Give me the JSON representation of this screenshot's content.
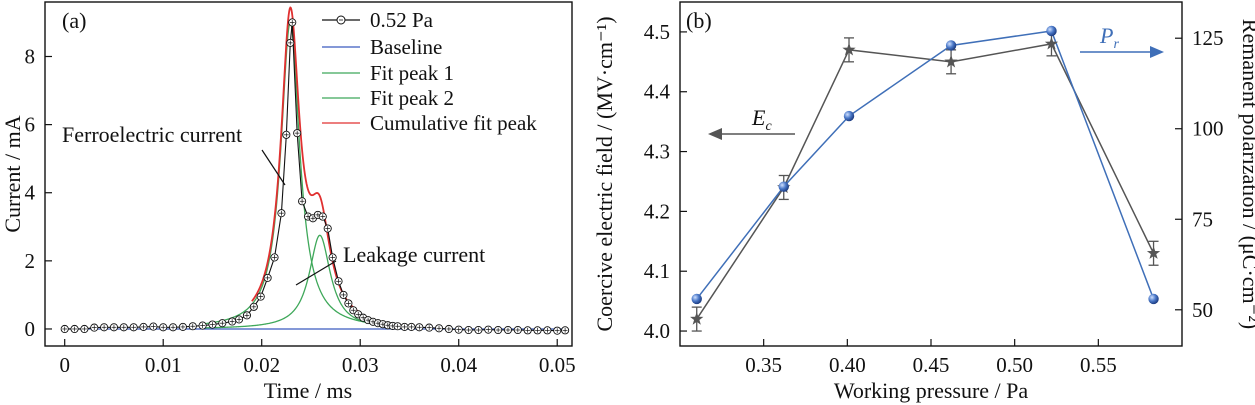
{
  "colors": {
    "data_marker": "#111111",
    "baseline": "#3a5bbf",
    "fit_peak": "#3fa85a",
    "cumulative": "#e03030",
    "ec_series": "#555555",
    "pr_series": "#3f6fb8",
    "pr_marker": "#4a78c8"
  },
  "chart_data": [
    {
      "type": "line",
      "panel_label": "(a)",
      "xlabel": "Time / ms",
      "ylabel": "Current / mA",
      "xlim": [
        -0.002,
        0.0515
      ],
      "ylim": [
        -0.5,
        9.6
      ],
      "x_ticks": [
        "0",
        "0.01",
        "0.02",
        "0.03",
        "0.04",
        "0.05"
      ],
      "y_ticks": [
        "0",
        "2",
        "4",
        "6",
        "8"
      ],
      "legend": [
        "0.52 Pa",
        "Baseline",
        "Fit peak 1",
        "Fit peak 2",
        "Cumulative fit peak"
      ],
      "legend_position": "top-right",
      "annotations": [
        "Ferroelectric current",
        "Leakage current"
      ],
      "peak1": {
        "center": 0.0229,
        "amplitude": 9.0,
        "half_width": 0.00115
      },
      "peak2": {
        "center": 0.0259,
        "amplitude": 2.75,
        "half_width": 0.0013
      },
      "series_points": [
        [
          0.0,
          0.0
        ],
        [
          0.001,
          0.0
        ],
        [
          0.002,
          0.0
        ],
        [
          0.003,
          0.04
        ],
        [
          0.004,
          0.05
        ],
        [
          0.005,
          0.05
        ],
        [
          0.006,
          0.05
        ],
        [
          0.007,
          0.05
        ],
        [
          0.008,
          0.06
        ],
        [
          0.009,
          0.07
        ],
        [
          0.01,
          0.05
        ],
        [
          0.011,
          0.05
        ],
        [
          0.012,
          0.06
        ],
        [
          0.013,
          0.08
        ],
        [
          0.014,
          0.1
        ],
        [
          0.015,
          0.13
        ],
        [
          0.016,
          0.17
        ],
        [
          0.017,
          0.22
        ],
        [
          0.0177,
          0.28
        ],
        [
          0.0185,
          0.4
        ],
        [
          0.0192,
          0.65
        ],
        [
          0.0199,
          0.95
        ],
        [
          0.0206,
          1.5
        ],
        [
          0.0213,
          2.1
        ],
        [
          0.022,
          3.4
        ],
        [
          0.0225,
          5.7
        ],
        [
          0.0229,
          8.4
        ],
        [
          0.0231,
          9.0
        ],
        [
          0.0236,
          5.75
        ],
        [
          0.0241,
          3.75
        ],
        [
          0.0247,
          3.3
        ],
        [
          0.0252,
          3.25
        ],
        [
          0.0257,
          3.35
        ],
        [
          0.0262,
          3.3
        ],
        [
          0.0267,
          2.95
        ],
        [
          0.0272,
          2.1
        ],
        [
          0.0278,
          1.4
        ],
        [
          0.0283,
          1.0
        ],
        [
          0.0288,
          0.75
        ],
        [
          0.0293,
          0.55
        ],
        [
          0.0298,
          0.43
        ],
        [
          0.0303,
          0.33
        ],
        [
          0.0308,
          0.26
        ],
        [
          0.0313,
          0.21
        ],
        [
          0.0318,
          0.17
        ],
        [
          0.0323,
          0.14
        ],
        [
          0.0328,
          0.11
        ],
        [
          0.0333,
          0.09
        ],
        [
          0.0338,
          0.08
        ],
        [
          0.0345,
          0.06
        ],
        [
          0.0352,
          0.06
        ],
        [
          0.036,
          0.05
        ],
        [
          0.037,
          0.04
        ],
        [
          0.038,
          0.02
        ],
        [
          0.039,
          0.0
        ],
        [
          0.04,
          -0.02
        ],
        [
          0.041,
          -0.03
        ],
        [
          0.042,
          -0.03
        ],
        [
          0.043,
          -0.02
        ],
        [
          0.044,
          -0.03
        ],
        [
          0.045,
          -0.03
        ],
        [
          0.046,
          -0.03
        ],
        [
          0.047,
          -0.04
        ],
        [
          0.048,
          -0.04
        ],
        [
          0.049,
          -0.04
        ],
        [
          0.05,
          -0.05
        ],
        [
          0.0508,
          -0.04
        ]
      ]
    },
    {
      "type": "line",
      "panel_label": "(b)",
      "xlabel": "Working pressure / Pa",
      "ylabel_left": "Coercive electric field / (MV·cm⁻¹)",
      "ylabel_right": "Remanent polarization / (μC·cm⁻²)",
      "xlim": [
        0.3,
        0.6
      ],
      "ylim_left": [
        3.975,
        4.55
      ],
      "ylim_right": [
        40,
        135
      ],
      "x_ticks": [
        "0.35",
        "0.40",
        "0.45",
        "0.50",
        "0.55"
      ],
      "y_ticks_left": [
        "4.0",
        "4.1",
        "4.2",
        "4.3",
        "4.4",
        "4.5"
      ],
      "y_ticks_right": [
        "50",
        "75",
        "100",
        "125"
      ],
      "annotations": [
        "E",
        "c",
        "P",
        "r"
      ],
      "series": [
        {
          "name": "E_c",
          "axis": "left",
          "marker": "star",
          "x": [
            0.31,
            0.362,
            0.401,
            0.462,
            0.522,
            0.583
          ],
          "values": [
            4.02,
            4.24,
            4.47,
            4.45,
            4.48,
            4.13
          ],
          "error": [
            0.02,
            0.02,
            0.02,
            0.02,
            0.02,
            0.02
          ]
        },
        {
          "name": "P_r",
          "axis": "right",
          "marker": "circle",
          "x": [
            0.31,
            0.362,
            0.401,
            0.462,
            0.522,
            0.583
          ],
          "values": [
            53.0,
            84.0,
            103.5,
            123.0,
            127.0,
            53.0
          ]
        }
      ]
    }
  ]
}
